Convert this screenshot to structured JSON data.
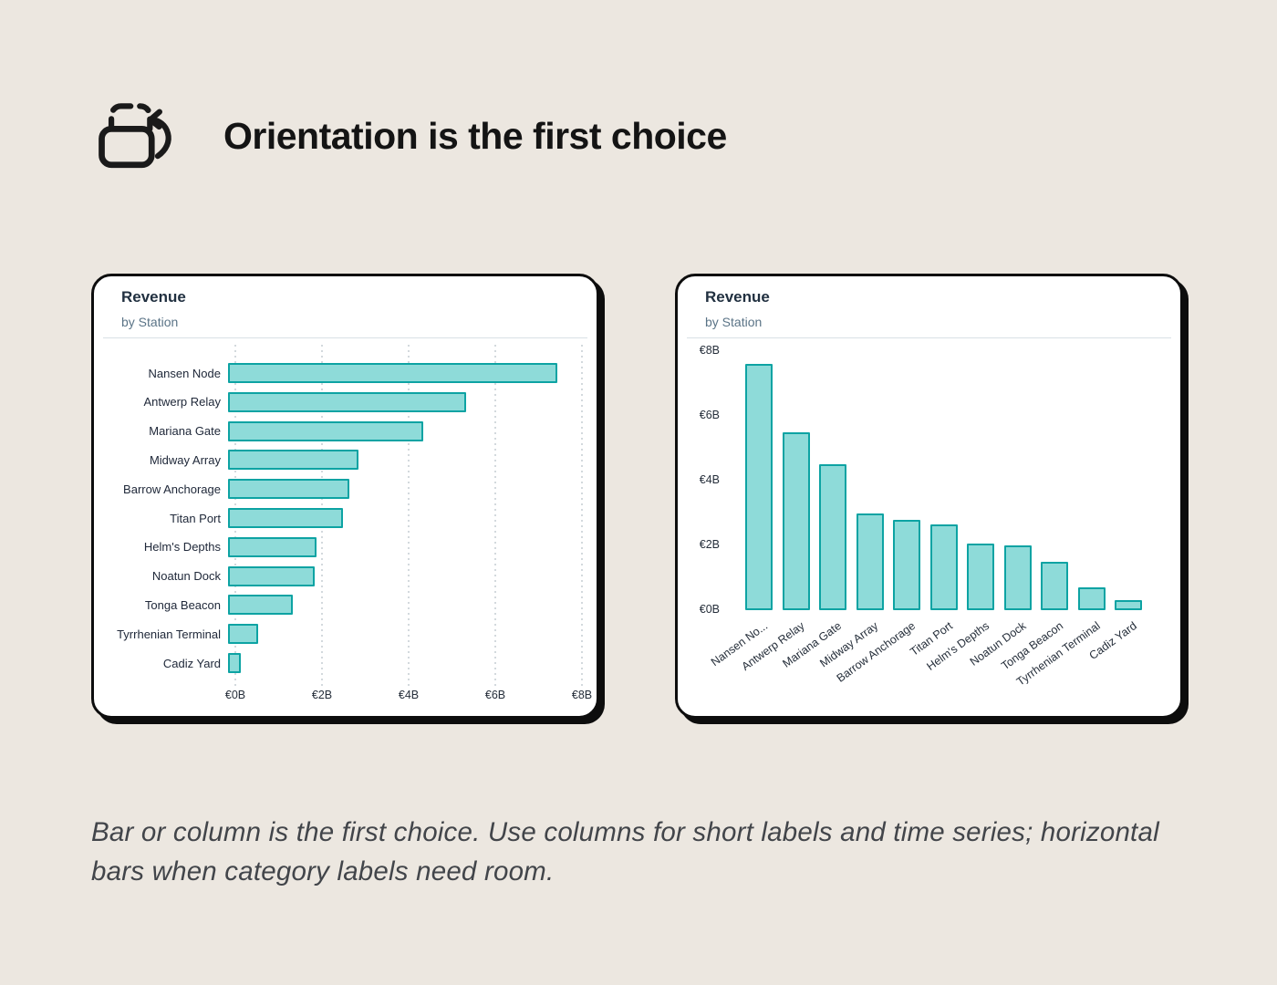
{
  "page": {
    "background": "#ece7e0"
  },
  "header": {
    "icon": "rotate-orientation-icon",
    "title": "Orientation is the first choice"
  },
  "caption": "Bar or column is the first choice. Use columns for short labels and time series; horizontal bars when category labels need room.",
  "colors": {
    "bar_fill": "#8edbd9",
    "bar_border": "#0da3a3",
    "card_bg": "#ffffff",
    "card_border": "#0d0d0d",
    "chart_title_text": "#213040",
    "chart_subtitle_text": "#5b7487",
    "axis_text": "#252e3a",
    "gridline": "#d3d9dd",
    "page_bg": "#ece7e0",
    "caption_text": "#42454a"
  },
  "chart_data": [
    {
      "type": "bar",
      "orientation": "horizontal",
      "title": "Revenue",
      "subtitle": "by Station",
      "categories": [
        "Nansen Node",
        "Antwerp Relay",
        "Mariana Gate",
        "Midway Array",
        "Barrow Anchorage",
        "Titan Port",
        "Helm's Depths",
        "Noatun Dock",
        "Tonga Beacon",
        "Tyrrhenian Terminal",
        "Cadiz Yard"
      ],
      "values": [
        7.6,
        5.5,
        4.5,
        3.0,
        2.8,
        2.65,
        2.05,
        2.0,
        1.5,
        0.7,
        0.3
      ],
      "unit": "€B",
      "x_ticks": [
        "€0B",
        "€2B",
        "€4B",
        "€6B",
        "€8B"
      ],
      "xlim": [
        0,
        8
      ],
      "grid": "vertical-dotted"
    },
    {
      "type": "bar",
      "orientation": "vertical",
      "title": "Revenue",
      "subtitle": "by Station",
      "categories": [
        "Nansen Node",
        "Antwerp Relay",
        "Mariana Gate",
        "Midway Array",
        "Barrow Anchorage",
        "Titan Port",
        "Helm's Depths",
        "Noatun Dock",
        "Tonga Beacon",
        "Tyrrhenian Terminal",
        "Cadiz Yard"
      ],
      "tick_labels": [
        "Nansen No...",
        "Antwerp Relay",
        "Mariana Gate",
        "Midway Array",
        "Barrow Anchorage",
        "Titan Port",
        "Helm's Depths",
        "Noatun Dock",
        "Tonga Beacon",
        "Tyrrhenian Terminal",
        "Cadiz Yard"
      ],
      "values": [
        7.6,
        5.5,
        4.5,
        3.0,
        2.8,
        2.65,
        2.05,
        2.0,
        1.5,
        0.7,
        0.3
      ],
      "unit": "€B",
      "y_ticks": [
        "€0B",
        "€2B",
        "€4B",
        "€6B",
        "€8B"
      ],
      "ylim": [
        0,
        8
      ],
      "grid": "horizontal-dotted"
    }
  ]
}
